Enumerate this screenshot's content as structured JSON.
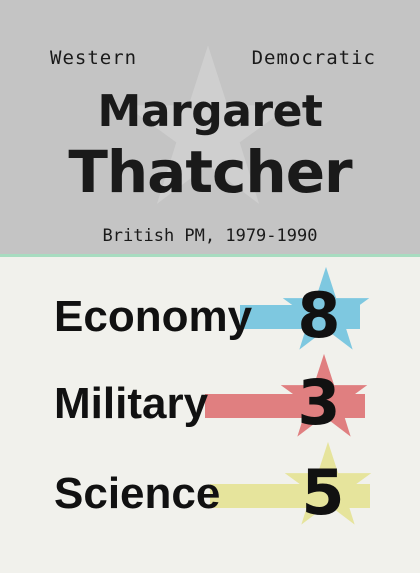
{
  "header": {
    "tag_left": "Western",
    "tag_right": "Democratic",
    "first_name": "Margaret",
    "last_name": "Thatcher",
    "subtitle": "British PM, 1979-1990",
    "background_color": "#c4c4c4",
    "star_color": "#cfcfcf",
    "divider_color": "#a8dcc0"
  },
  "stats": [
    {
      "label": "Economy",
      "value": "8",
      "color": "#7ec8e0",
      "icon": "star-icon"
    },
    {
      "label": "Military",
      "value": "3",
      "color": "#e07f80",
      "icon": "star-icon"
    },
    {
      "label": "Science",
      "value": "5",
      "color": "#e6e49c",
      "icon": "star-icon"
    }
  ]
}
